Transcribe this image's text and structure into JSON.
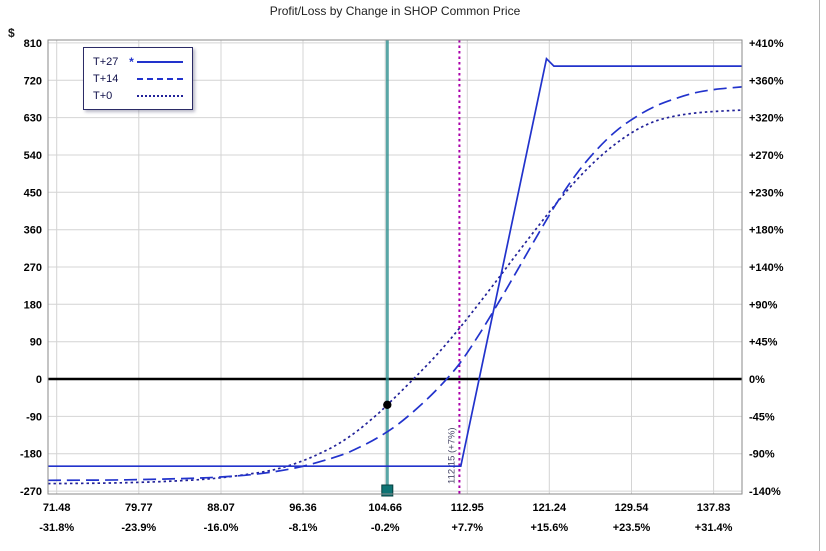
{
  "chart_data": {
    "type": "line",
    "title": "Profit/Loss by Change in SHOP Common Price",
    "y_left_label": "$",
    "x_range": [
      70.6,
      140.7
    ],
    "y_range": [
      -277,
      817
    ],
    "grid": true,
    "legend_position": "top-left",
    "y_axis": {
      "ticks": [
        {
          "value": 810,
          "dollar": "810",
          "percent": "+410%"
        },
        {
          "value": 720,
          "dollar": "720",
          "percent": "+360%"
        },
        {
          "value": 630,
          "dollar": "630",
          "percent": "+320%"
        },
        {
          "value": 540,
          "dollar": "540",
          "percent": "+270%"
        },
        {
          "value": 450,
          "dollar": "450",
          "percent": "+230%"
        },
        {
          "value": 360,
          "dollar": "360",
          "percent": "+180%"
        },
        {
          "value": 270,
          "dollar": "270",
          "percent": "+140%"
        },
        {
          "value": 180,
          "dollar": "180",
          "percent": "+90%"
        },
        {
          "value": 90,
          "dollar": "90",
          "percent": "+45%"
        },
        {
          "value": 0,
          "dollar": "0",
          "percent": "0%"
        },
        {
          "value": -90,
          "dollar": "-90",
          "percent": "-45%"
        },
        {
          "value": -180,
          "dollar": "-180",
          "percent": "-90%"
        },
        {
          "value": -270,
          "dollar": "-270",
          "percent": "-140%"
        }
      ]
    },
    "x_axis": {
      "ticks": [
        {
          "value": 71.48,
          "price": "71.48",
          "percent": "-31.8%"
        },
        {
          "value": 79.77,
          "price": "79.77",
          "percent": "-23.9%"
        },
        {
          "value": 88.07,
          "price": "88.07",
          "percent": "-16.0%"
        },
        {
          "value": 96.36,
          "price": "96.36",
          "percent": "-8.1%"
        },
        {
          "value": 104.66,
          "price": "104.66",
          "percent": "-0.2%"
        },
        {
          "value": 112.95,
          "price": "112.95",
          "percent": "+7.7%"
        },
        {
          "value": 121.24,
          "price": "121.24",
          "percent": "+15.6%"
        },
        {
          "value": 129.54,
          "price": "129.54",
          "percent": "+23.5%"
        },
        {
          "value": 137.83,
          "price": "137.83",
          "percent": "+31.4%"
        }
      ]
    },
    "legend": {
      "items": [
        {
          "label": "T+27",
          "marker": "*",
          "style": "solid",
          "color": "#2233cc"
        },
        {
          "label": "T+14",
          "marker": "",
          "style": "long-dash",
          "color": "#2233cc"
        },
        {
          "label": "T+0",
          "marker": "",
          "style": "dot",
          "color": "#222299"
        }
      ]
    },
    "series": [
      {
        "name": "T+27",
        "style": "solid",
        "color": "#2233cc",
        "smooth": false,
        "points": [
          [
            70.6,
            -210
          ],
          [
            112.3,
            -210
          ],
          [
            120.95,
            772
          ],
          [
            121.7,
            754
          ],
          [
            140.7,
            754
          ]
        ]
      },
      {
        "name": "T+14",
        "style": "long-dash",
        "color": "#2233cc",
        "smooth": true,
        "points": [
          [
            70.6,
            -244
          ],
          [
            78,
            -243
          ],
          [
            84,
            -240
          ],
          [
            88,
            -236
          ],
          [
            92,
            -228
          ],
          [
            96,
            -212
          ],
          [
            100,
            -185
          ],
          [
            102,
            -165
          ],
          [
            104,
            -140
          ],
          [
            106,
            -108
          ],
          [
            108,
            -68
          ],
          [
            110,
            -22
          ],
          [
            112,
            32
          ],
          [
            114,
            102
          ],
          [
            116,
            180
          ],
          [
            118,
            262
          ],
          [
            120,
            345
          ],
          [
            122,
            425
          ],
          [
            124,
            495
          ],
          [
            126,
            552
          ],
          [
            128,
            598
          ],
          [
            130,
            632
          ],
          [
            132,
            658
          ],
          [
            134,
            676
          ],
          [
            136,
            690
          ],
          [
            138,
            698
          ],
          [
            140.7,
            704
          ]
        ]
      },
      {
        "name": "T+0",
        "style": "dot",
        "color": "#222299",
        "smooth": true,
        "points": [
          [
            70.6,
            -252
          ],
          [
            78,
            -250
          ],
          [
            84,
            -245
          ],
          [
            88,
            -238
          ],
          [
            92,
            -225
          ],
          [
            94,
            -215
          ],
          [
            96,
            -200
          ],
          [
            98,
            -180
          ],
          [
            100,
            -155
          ],
          [
            102,
            -122
          ],
          [
            104,
            -82
          ],
          [
            104.87,
            -62
          ],
          [
            106,
            -36
          ],
          [
            108,
            12
          ],
          [
            110,
            62
          ],
          [
            112,
            118
          ],
          [
            114,
            178
          ],
          [
            116,
            240
          ],
          [
            118,
            303
          ],
          [
            120,
            365
          ],
          [
            122,
            425
          ],
          [
            124,
            480
          ],
          [
            126,
            528
          ],
          [
            128,
            568
          ],
          [
            130,
            600
          ],
          [
            132,
            622
          ],
          [
            134,
            634
          ],
          [
            136,
            641
          ],
          [
            138,
            645
          ],
          [
            140.7,
            648
          ]
        ]
      }
    ],
    "annotations": {
      "zero_line": {
        "y": 0,
        "color": "#000000"
      },
      "current_price_line": {
        "x": 104.87,
        "color": "#2f9090"
      },
      "price_slider_handle": {
        "x": 104.87,
        "color": "#0e7474"
      },
      "target_line": {
        "x": 112.15,
        "label": "112.15 (+7%)",
        "color": "#aa00aa",
        "label_color": "#4a4a6a"
      },
      "current_pl_dot": {
        "x": 104.87,
        "y": -62,
        "color": "#000000"
      }
    },
    "colors": {
      "grid": "#d4d4d4",
      "plot_border": "#8a8a8a",
      "axis_text": "#000000",
      "title_text": "#1d1d1d"
    }
  }
}
